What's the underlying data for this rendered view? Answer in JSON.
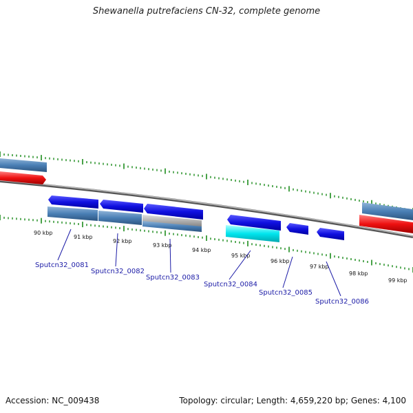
{
  "header": {
    "title": "Shewanella putrefaciens CN-32, complete genome"
  },
  "footer": {
    "accession": "Accession: NC_009438",
    "summary": "Topology: circular; Length: 4,659,220 bp; Genes: 4,100"
  },
  "ticks": [
    {
      "label": "90 kbp"
    },
    {
      "label": "91 kbp"
    },
    {
      "label": "92 kbp"
    },
    {
      "label": "93 kbp"
    },
    {
      "label": "94 kbp"
    },
    {
      "label": "95 kbp"
    },
    {
      "label": "96 kbp"
    },
    {
      "label": "97 kbp"
    },
    {
      "label": "98 kbp"
    },
    {
      "label": "99 kbp"
    }
  ],
  "genes": [
    {
      "label": "Sputcn32_0081"
    },
    {
      "label": "Sputcn32_0082"
    },
    {
      "label": "Sputcn32_0083"
    },
    {
      "label": "Sputcn32_0084"
    },
    {
      "label": "Sputcn32_0085"
    },
    {
      "label": "Sputcn32_0086"
    }
  ],
  "colors": {
    "backbone": "#888888",
    "tick": "#1a8a1a",
    "forward_gene": "#1010e0",
    "steel_blue": "#4a7fb5",
    "grey_feature": "#b0b0b0",
    "cyan_feature": "#00e5ee",
    "red_feature": "#ee1111",
    "gene_label": "#1a1aa6"
  }
}
